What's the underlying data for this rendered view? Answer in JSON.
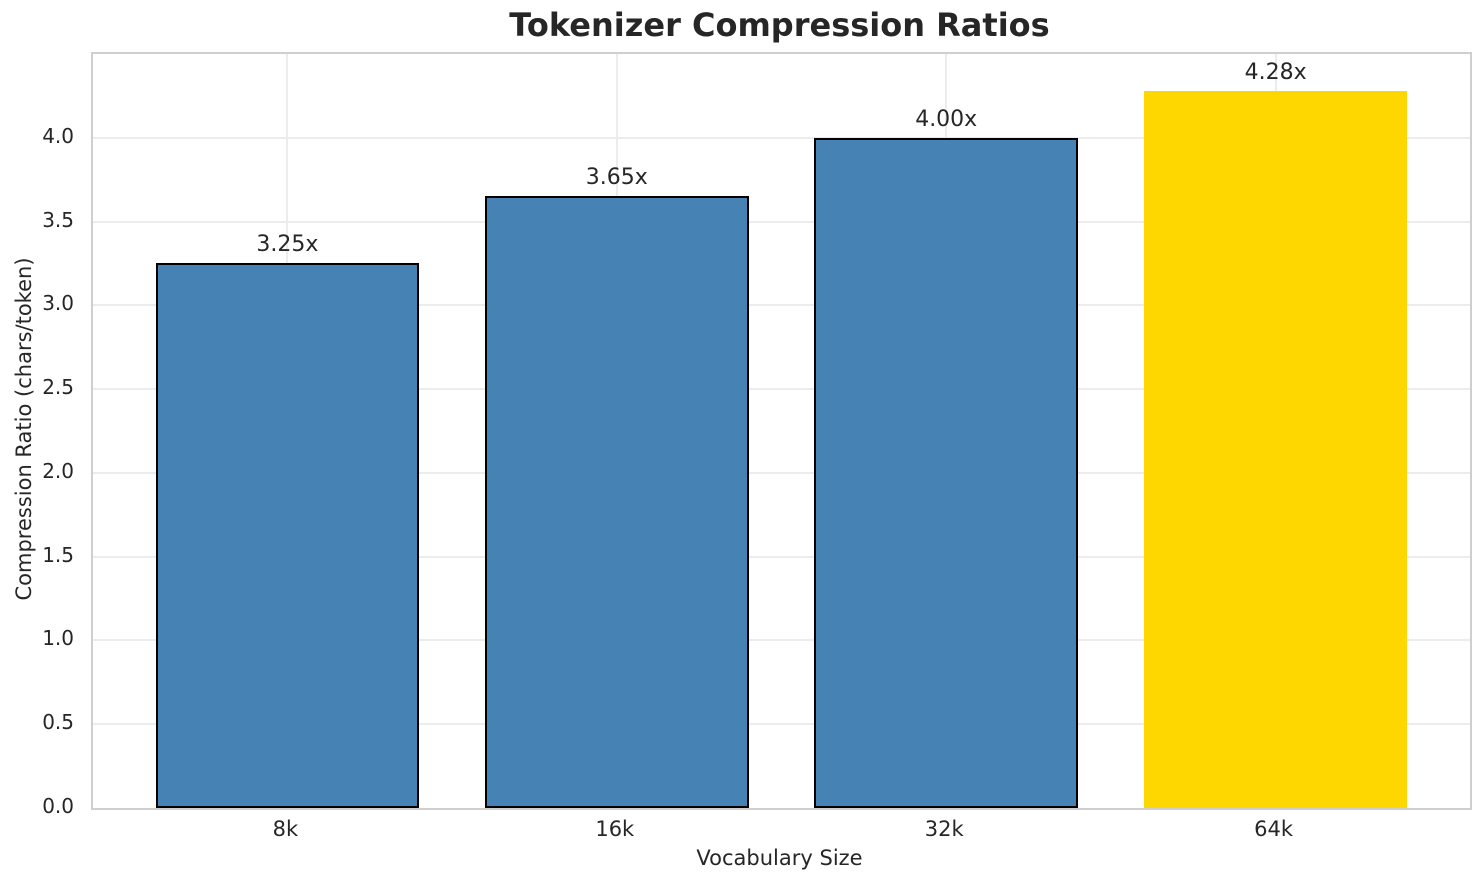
{
  "chart_data": {
    "type": "bar",
    "title": "Tokenizer Compression Ratios",
    "xlabel": "Vocabulary Size",
    "ylabel": "Compression Ratio (chars/token)",
    "categories": [
      "8k",
      "16k",
      "32k",
      "64k"
    ],
    "values": [
      3.25,
      3.65,
      4.0,
      4.28
    ],
    "bar_labels": [
      "3.25x",
      "3.65x",
      "4.00x",
      "4.28x"
    ],
    "bar_colors": [
      "#4682b4",
      "#4682b4",
      "#4682b4",
      "#ffd700"
    ],
    "bar_edge_colors": [
      "#000000",
      "#000000",
      "#000000",
      "none"
    ],
    "highlight_index": 3,
    "ylim": [
      0,
      4.5
    ],
    "yticks": [
      0.0,
      0.5,
      1.0,
      1.5,
      2.0,
      2.5,
      3.0,
      3.5,
      4.0
    ],
    "ytick_labels": [
      "0.0",
      "0.5",
      "1.0",
      "1.5",
      "2.0",
      "2.5",
      "3.0",
      "3.5",
      "4.0"
    ],
    "grid": true,
    "legend": "none",
    "background_color": "#ffffff",
    "text_color": "#262626",
    "grid_color": "#ececec",
    "spine_color": "#cfcfcf"
  }
}
